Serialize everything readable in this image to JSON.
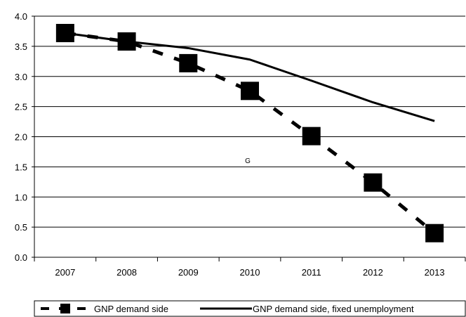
{
  "chart_data": {
    "type": "line",
    "x": [
      "2007",
      "2008",
      "2009",
      "2010",
      "2011",
      "2012",
      "2013"
    ],
    "series": [
      {
        "name": "GNP demand side",
        "values": [
          3.72,
          3.58,
          3.22,
          2.76,
          2.01,
          1.24,
          0.4
        ],
        "style": "dashed",
        "marker": "square",
        "color": "#000000"
      },
      {
        "name": "GNP demand side, fixed unemployment",
        "values": [
          3.72,
          3.58,
          3.47,
          3.28,
          2.93,
          2.57,
          2.26
        ],
        "style": "solid",
        "marker": "none",
        "color": "#000000"
      }
    ],
    "ylim": [
      0,
      4.0
    ],
    "yticks": [
      "0.0",
      "0.5",
      "1.0",
      "1.5",
      "2.0",
      "2.5",
      "3.0",
      "3.5",
      "4.0"
    ],
    "grid": true,
    "legend_position": "bottom",
    "annotations": [
      {
        "text": "G",
        "x": "2010",
        "y": 1.6
      }
    ]
  }
}
